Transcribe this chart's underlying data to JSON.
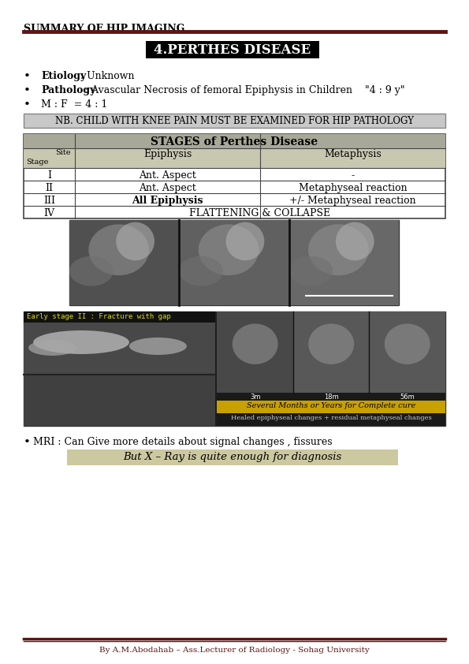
{
  "page_title": "SUMMARY OF HIP IMAGING",
  "section_title": "4.PERTHES DISEASE",
  "title_bg": "#000000",
  "title_color": "#ffffff",
  "separator_color": "#5c1515",
  "bullets": [
    {
      "bold": "Etiology",
      "normal": " : Unknown"
    },
    {
      "bold": "Pathology",
      "normal": " : Avascular Necrosis of femoral Epiphysis in Children    \"4 : 9 y\""
    },
    {
      "bold": "M : F  = 4 : 1",
      "normal": ""
    }
  ],
  "nb_text": "NB. CHILD WITH KNEE PAIN MUST BE EXAMINED FOR HIP PATHOLOGY",
  "nb_bg": "#c8c8c8",
  "nb_edge": "#888888",
  "table_header": "STAGES of Perthes Disease",
  "table_header_bg": "#a8a898",
  "table_col_header_bg": "#c8c8b0",
  "table_col_header_edge": "#666655",
  "table_columns": [
    "Site",
    "Epiphysis",
    "Metaphysis"
  ],
  "table_col_sub": [
    "Stage",
    "",
    ""
  ],
  "table_rows": [
    [
      "I",
      "Ant. Aspect",
      "-",
      false
    ],
    [
      "II",
      "Ant. Aspect",
      "Metaphyseal reaction",
      false
    ],
    [
      "III",
      "All Epiphysis",
      "+/- Metaphyseal reaction",
      true
    ],
    [
      "IV",
      "FLATTENING & COLLAPSE",
      "",
      false
    ]
  ],
  "mri_bullet": "MRI : Can Give more details about signal changes , fissures",
  "xray_note": "But X – Ray is quite enough for diagnosis",
  "xray_note_bg": "#ccc8a0",
  "footer": "By A.M.Abodahab – Ass.Lecturer of Radiology - Sohag University",
  "footer_color": "#5c1515",
  "page_bg": "#ffffff",
  "img1_bg": "#404040",
  "img1_sub_colors": [
    "#505050",
    "#606060",
    "#686868"
  ],
  "img2_left_bg": "#383838",
  "img2_right_bg": "#505050",
  "img2_label_text": "Early stage II : Fracture with gap",
  "img2_label_color": "#dddd00",
  "several_months_text": "Several Months or Years for Complete cure",
  "several_months_bg": "#c8a000",
  "healed_text": "Healed epiphyseal changes + residual metaphyseal changes",
  "time_labels": [
    "3m",
    "18m",
    "56m"
  ]
}
